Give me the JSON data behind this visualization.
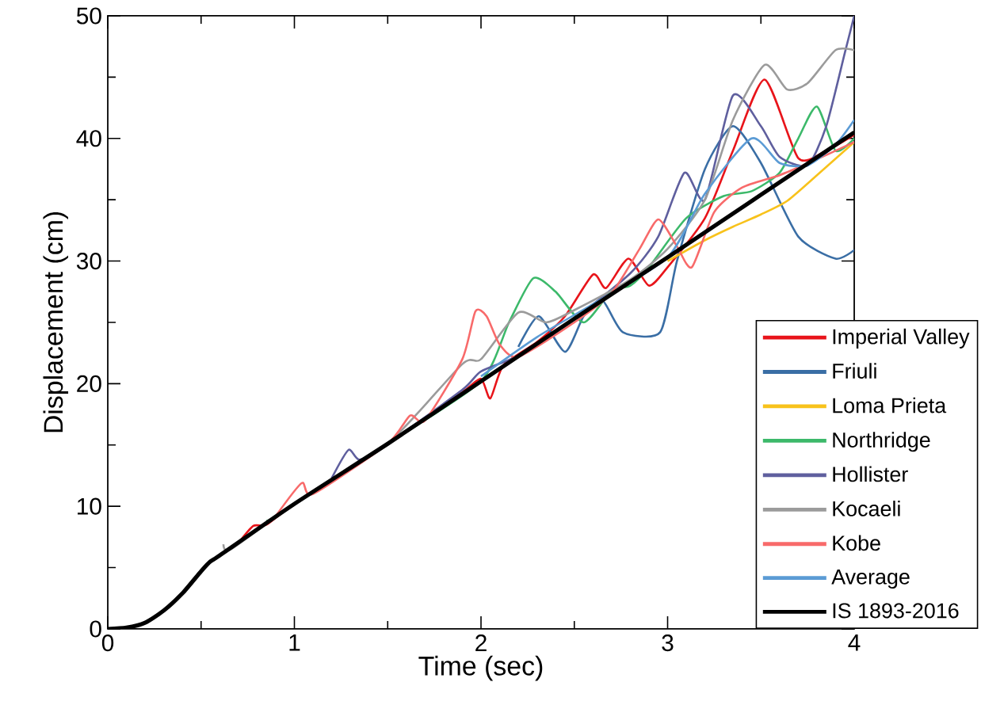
{
  "chart_data": {
    "type": "line",
    "xlabel": "Time (sec)",
    "ylabel": "Displacement (cm)",
    "xlim": [
      0,
      4
    ],
    "ylim": [
      0,
      50
    ],
    "xticks": [
      0,
      1,
      2,
      3,
      4
    ],
    "yticks": [
      0,
      10,
      20,
      30,
      40,
      50
    ],
    "grid": false,
    "legend": "bottom right",
    "line_style": "solid",
    "series": [
      {
        "name": "Imperial Valley",
        "color": "#e8141a",
        "x": [
          0.7,
          0.78,
          0.85,
          1.0,
          1.5,
          1.9,
          2.0,
          2.05,
          2.12,
          2.3,
          2.45,
          2.6,
          2.67,
          2.79,
          2.9,
          3.0,
          3.2,
          3.35,
          3.52,
          3.7,
          3.85,
          4.0
        ],
        "values": [
          7.0,
          8.4,
          8.5,
          10.2,
          15.1,
          19.3,
          20.4,
          18.8,
          21.5,
          23.4,
          25.5,
          28.9,
          27.8,
          30.2,
          28.0,
          29.5,
          33.5,
          39.0,
          44.8,
          38.4,
          39.0,
          40.3
        ]
      },
      {
        "name": "Friuli",
        "color": "#3a6ea5",
        "x": [
          2.2,
          2.31,
          2.45,
          2.55,
          2.65,
          2.76,
          2.96,
          3.05,
          3.2,
          3.35,
          3.5,
          3.7,
          3.9,
          4.0
        ],
        "values": [
          23.0,
          25.5,
          22.6,
          25.5,
          26.8,
          24.2,
          24.2,
          30.0,
          37.5,
          41.0,
          38.0,
          32.0,
          30.2,
          30.9
        ]
      },
      {
        "name": "Loma Prieta",
        "color": "#f8c21b",
        "x": [
          3.0,
          3.2,
          3.35,
          3.5,
          3.64,
          3.8,
          4.0
        ],
        "values": [
          30.0,
          31.7,
          32.8,
          33.8,
          34.9,
          37.0,
          39.7
        ]
      },
      {
        "name": "Northridge",
        "color": "#3cb96a",
        "x": [
          0.85,
          0.9,
          1.0,
          1.5,
          2.0,
          2.15,
          2.28,
          2.4,
          2.55,
          2.7,
          2.8,
          2.9,
          3.1,
          3.3,
          3.45,
          3.6,
          3.7,
          3.8,
          3.9,
          4.0
        ],
        "values": [
          8.8,
          9.1,
          10.2,
          15.1,
          20.2,
          25.0,
          28.6,
          27.5,
          25.0,
          27.6,
          28.0,
          29.5,
          33.5,
          35.3,
          35.7,
          37.2,
          40.0,
          42.6,
          39.0,
          40.0
        ]
      },
      {
        "name": "Hollister",
        "color": "#5f5f9e",
        "x": [
          1.2,
          1.29,
          1.35,
          1.5,
          1.9,
          2.0,
          2.2,
          2.5,
          2.8,
          2.95,
          3.09,
          3.2,
          3.35,
          3.5,
          3.6,
          3.75,
          3.85,
          3.95,
          4.0
        ],
        "values": [
          12.3,
          14.6,
          13.8,
          15.1,
          19.5,
          21.0,
          22.3,
          25.3,
          29.0,
          32.0,
          37.2,
          35.0,
          43.5,
          41.0,
          38.5,
          37.8,
          41.0,
          47.0,
          50.0
        ]
      },
      {
        "name": "Kocaeli",
        "color": "#9b9b9b",
        "x": [
          0.62,
          0.66,
          1.0,
          1.5,
          1.9,
          2.0,
          2.2,
          2.35,
          2.5,
          2.8,
          3.0,
          3.2,
          3.35,
          3.52,
          3.64,
          3.75,
          3.9,
          4.0
        ],
        "values": [
          6.9,
          6.5,
          10.2,
          15.1,
          21.6,
          22.0,
          25.8,
          25.0,
          26.0,
          28.5,
          31.0,
          35.0,
          41.5,
          46.0,
          44.0,
          44.5,
          47.2,
          47.2
        ]
      },
      {
        "name": "Kobe",
        "color": "#f86a6a",
        "x": [
          0.9,
          1.04,
          1.1,
          1.5,
          1.62,
          1.7,
          1.9,
          1.97,
          2.03,
          2.1,
          2.2,
          2.5,
          2.7,
          2.85,
          2.95,
          3.05,
          3.13,
          3.25,
          3.4,
          3.6,
          3.8,
          4.0
        ],
        "values": [
          9.2,
          11.9,
          11.0,
          15.1,
          17.4,
          17.0,
          22.0,
          25.9,
          25.5,
          23.2,
          22.2,
          25.0,
          27.4,
          31.0,
          33.4,
          31.2,
          29.5,
          34.0,
          36.0,
          37.0,
          38.3,
          39.7
        ]
      },
      {
        "name": "Average",
        "color": "#5b9bd5",
        "x": [
          2.0,
          2.3,
          2.6,
          3.0,
          3.2,
          3.45,
          3.6,
          3.75,
          3.9,
          4.0
        ],
        "values": [
          20.6,
          23.8,
          26.5,
          30.3,
          35.5,
          40.0,
          38.0,
          37.8,
          39.5,
          41.5
        ]
      },
      {
        "name": "IS 1893-2016",
        "color": "#000000",
        "x": [
          0,
          0.1,
          0.2,
          0.3,
          0.4,
          0.5,
          0.55,
          0.6,
          1.0,
          1.5,
          2.0,
          2.5,
          3.0,
          3.5,
          4.0
        ],
        "values": [
          0,
          0.1,
          0.5,
          1.5,
          2.9,
          4.7,
          5.5,
          6.0,
          10.2,
          15.1,
          20.2,
          25.3,
          30.3,
          35.4,
          40.5
        ]
      }
    ]
  }
}
